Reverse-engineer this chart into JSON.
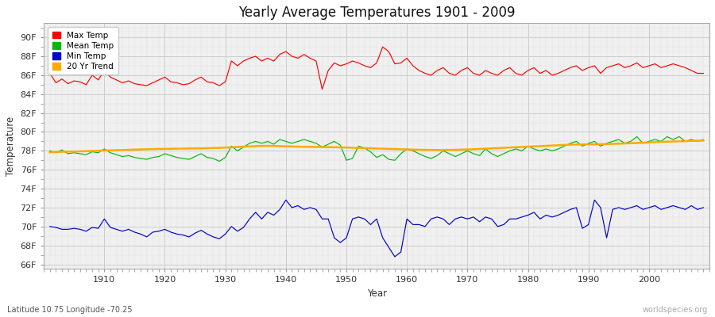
{
  "title": "Yearly Average Temperatures 1901 - 2009",
  "xlabel": "Year",
  "ylabel": "Temperature",
  "subtitle_left": "Latitude 10.75 Longitude -70.25",
  "subtitle_right": "worldspecies.org",
  "years": [
    1901,
    1902,
    1903,
    1904,
    1905,
    1906,
    1907,
    1908,
    1909,
    1910,
    1911,
    1912,
    1913,
    1914,
    1915,
    1916,
    1917,
    1918,
    1919,
    1920,
    1921,
    1922,
    1923,
    1924,
    1925,
    1926,
    1927,
    1928,
    1929,
    1930,
    1931,
    1932,
    1933,
    1934,
    1935,
    1936,
    1937,
    1938,
    1939,
    1940,
    1941,
    1942,
    1943,
    1944,
    1945,
    1946,
    1947,
    1948,
    1949,
    1950,
    1951,
    1952,
    1953,
    1954,
    1955,
    1956,
    1957,
    1958,
    1959,
    1960,
    1961,
    1962,
    1963,
    1964,
    1965,
    1966,
    1967,
    1968,
    1969,
    1970,
    1971,
    1972,
    1973,
    1974,
    1975,
    1976,
    1977,
    1978,
    1979,
    1980,
    1981,
    1982,
    1983,
    1984,
    1985,
    1986,
    1987,
    1988,
    1989,
    1990,
    1991,
    1992,
    1993,
    1994,
    1995,
    1996,
    1997,
    1998,
    1999,
    2000,
    2001,
    2002,
    2003,
    2004,
    2005,
    2006,
    2007,
    2008,
    2009
  ],
  "max_temp": [
    86.2,
    85.2,
    85.6,
    85.1,
    85.4,
    85.3,
    85.0,
    86.0,
    85.5,
    86.5,
    85.8,
    85.5,
    85.2,
    85.4,
    85.1,
    85.0,
    84.9,
    85.2,
    85.5,
    85.8,
    85.3,
    85.2,
    85.0,
    85.1,
    85.5,
    85.8,
    85.3,
    85.2,
    84.9,
    85.3,
    87.5,
    87.0,
    87.5,
    87.8,
    88.0,
    87.5,
    87.8,
    87.5,
    88.2,
    88.5,
    88.0,
    87.8,
    88.2,
    87.8,
    87.5,
    84.5,
    86.5,
    87.3,
    87.0,
    87.2,
    87.5,
    87.3,
    87.0,
    86.8,
    87.3,
    89.0,
    88.5,
    87.2,
    87.3,
    87.8,
    87.0,
    86.5,
    86.2,
    86.0,
    86.5,
    86.8,
    86.2,
    86.0,
    86.5,
    86.8,
    86.2,
    86.0,
    86.5,
    86.2,
    86.0,
    86.5,
    86.8,
    86.2,
    86.0,
    86.5,
    86.8,
    86.2,
    86.5,
    86.0,
    86.2,
    86.5,
    86.8,
    87.0,
    86.5,
    86.8,
    87.0,
    86.2,
    86.8,
    87.0,
    87.2,
    86.8,
    87.0,
    87.3,
    86.8,
    87.0,
    87.2,
    86.8,
    87.0,
    87.2,
    87.0,
    86.8,
    86.5,
    86.2,
    86.2
  ],
  "mean_temp": [
    78.0,
    77.8,
    78.1,
    77.7,
    77.8,
    77.7,
    77.6,
    77.9,
    77.8,
    78.2,
    77.8,
    77.6,
    77.4,
    77.5,
    77.3,
    77.2,
    77.1,
    77.3,
    77.4,
    77.7,
    77.5,
    77.3,
    77.2,
    77.1,
    77.4,
    77.7,
    77.3,
    77.2,
    76.9,
    77.3,
    78.5,
    78.0,
    78.4,
    78.8,
    79.0,
    78.8,
    79.0,
    78.7,
    79.2,
    79.0,
    78.8,
    79.0,
    79.2,
    79.0,
    78.8,
    78.4,
    78.7,
    79.0,
    78.6,
    77.0,
    77.2,
    78.5,
    78.3,
    77.9,
    77.3,
    77.6,
    77.1,
    77.0,
    77.7,
    78.2,
    78.0,
    77.7,
    77.4,
    77.2,
    77.5,
    78.0,
    77.7,
    77.4,
    77.7,
    78.0,
    77.7,
    77.5,
    78.2,
    77.7,
    77.4,
    77.7,
    78.0,
    78.2,
    78.0,
    78.5,
    78.2,
    78.0,
    78.2,
    78.0,
    78.2,
    78.5,
    78.8,
    79.0,
    78.5,
    78.8,
    79.0,
    78.5,
    78.8,
    79.0,
    79.2,
    78.8,
    79.0,
    79.5,
    78.8,
    79.0,
    79.2,
    79.0,
    79.5,
    79.2,
    79.5,
    79.0,
    79.2,
    79.0,
    79.2
  ],
  "min_temp": [
    70.0,
    69.9,
    69.7,
    69.7,
    69.8,
    69.7,
    69.5,
    69.9,
    69.8,
    70.8,
    69.9,
    69.7,
    69.5,
    69.7,
    69.4,
    69.2,
    68.9,
    69.4,
    69.5,
    69.7,
    69.4,
    69.2,
    69.1,
    68.9,
    69.3,
    69.6,
    69.2,
    68.9,
    68.7,
    69.2,
    70.0,
    69.5,
    69.9,
    70.8,
    71.5,
    70.8,
    71.5,
    71.2,
    71.8,
    72.8,
    72.0,
    72.2,
    71.8,
    72.0,
    71.8,
    70.8,
    70.8,
    68.8,
    68.3,
    68.8,
    70.8,
    71.0,
    70.8,
    70.2,
    70.8,
    68.8,
    67.8,
    66.8,
    67.3,
    70.8,
    70.2,
    70.2,
    70.0,
    70.8,
    71.0,
    70.8,
    70.2,
    70.8,
    71.0,
    70.8,
    71.0,
    70.5,
    71.0,
    70.8,
    70.0,
    70.2,
    70.8,
    70.8,
    71.0,
    71.2,
    71.5,
    70.8,
    71.2,
    71.0,
    71.2,
    71.5,
    71.8,
    72.0,
    69.8,
    70.2,
    72.8,
    72.0,
    68.8,
    71.8,
    72.0,
    71.8,
    72.0,
    72.2,
    71.8,
    72.0,
    72.2,
    71.8,
    72.0,
    72.2,
    72.0,
    71.8,
    72.2,
    71.8,
    72.0
  ],
  "trend_20yr": [
    77.85,
    77.88,
    77.9,
    77.92,
    77.93,
    77.95,
    77.97,
    77.99,
    78.01,
    78.03,
    78.05,
    78.07,
    78.09,
    78.11,
    78.13,
    78.15,
    78.17,
    78.19,
    78.2,
    78.21,
    78.22,
    78.23,
    78.24,
    78.25,
    78.26,
    78.27,
    78.28,
    78.3,
    78.32,
    78.35,
    78.38,
    78.41,
    78.44,
    78.47,
    78.5,
    78.52,
    78.53,
    78.52,
    78.5,
    78.48,
    78.46,
    78.44,
    78.43,
    78.42,
    78.41,
    78.4,
    78.39,
    78.38,
    78.37,
    78.35,
    78.33,
    78.31,
    78.29,
    78.27,
    78.25,
    78.23,
    78.21,
    78.19,
    78.17,
    78.15,
    78.13,
    78.12,
    78.11,
    78.1,
    78.09,
    78.09,
    78.1,
    78.11,
    78.13,
    78.15,
    78.17,
    78.2,
    78.23,
    78.26,
    78.29,
    78.32,
    78.35,
    78.38,
    78.41,
    78.44,
    78.47,
    78.5,
    78.53,
    78.56,
    78.59,
    78.62,
    78.65,
    78.67,
    78.68,
    78.69,
    78.7,
    78.71,
    78.72,
    78.74,
    78.76,
    78.78,
    78.8,
    78.83,
    78.86,
    78.89,
    78.92,
    78.95,
    78.97,
    78.99,
    79.01,
    79.03,
    79.05,
    79.07,
    79.09
  ],
  "max_color": "#ff0000",
  "mean_color": "#00bb00",
  "min_color": "#0000cc",
  "trend_color": "#ffaa00",
  "fig_bg_color": "#ffffff",
  "plot_bg_color": "#f0f0f0",
  "grid_major_color": "#cccccc",
  "grid_minor_color": "#e0e0e0",
  "yticks": [
    66,
    68,
    70,
    72,
    74,
    76,
    78,
    80,
    82,
    84,
    86,
    88,
    90
  ],
  "ylim": [
    65.5,
    91.5
  ],
  "xlim": [
    1900,
    2010
  ],
  "xticks": [
    1910,
    1920,
    1930,
    1940,
    1950,
    1960,
    1970,
    1980,
    1990,
    2000
  ]
}
